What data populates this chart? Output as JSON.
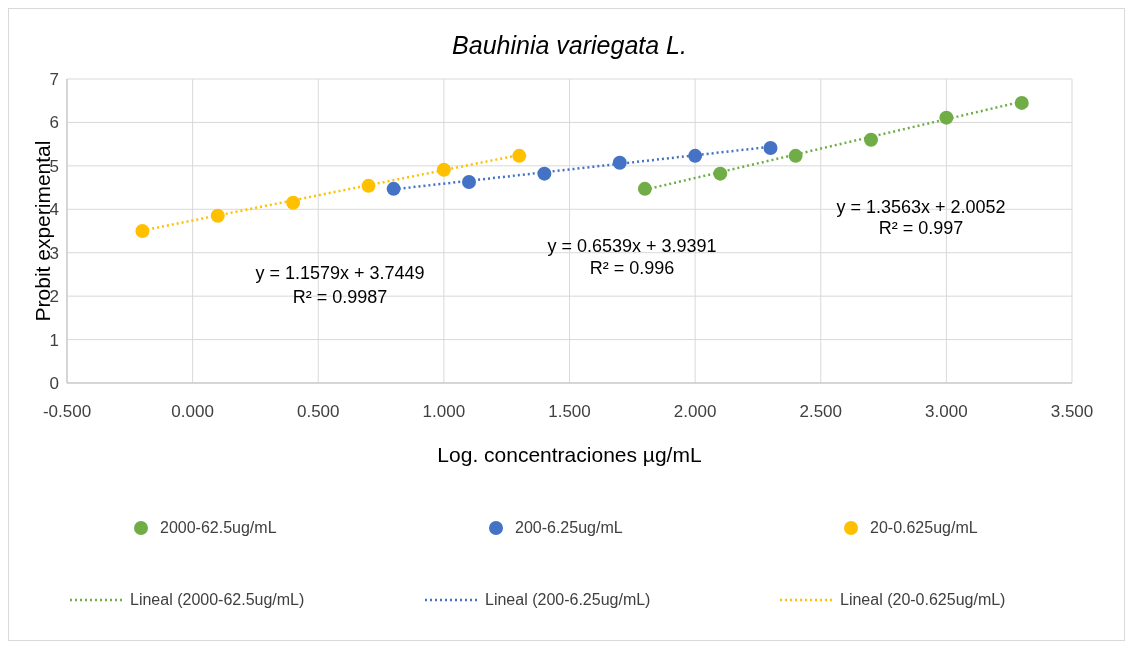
{
  "chart_data": {
    "type": "scatter",
    "title": "Bauhinia variegata L.",
    "xlabel": "Log. concentraciones µg/mL",
    "ylabel": "Probit experimental",
    "xlim": [
      -0.5,
      3.5
    ],
    "ylim": [
      0,
      7
    ],
    "xticks": [
      {
        "value": -0.5,
        "label": "-0.500"
      },
      {
        "value": 0,
        "label": "0.000"
      },
      {
        "value": 0.5,
        "label": "0.500"
      },
      {
        "value": 1,
        "label": "1.000"
      },
      {
        "value": 1.5,
        "label": "1.500"
      },
      {
        "value": 2,
        "label": "2.000"
      },
      {
        "value": 2.5,
        "label": "2.500"
      },
      {
        "value": 3,
        "label": "3.000"
      },
      {
        "value": 3.5,
        "label": "3.500"
      }
    ],
    "yticks": [
      0,
      1,
      2,
      3,
      4,
      5,
      6,
      7
    ],
    "grid": true,
    "legend": "bottom",
    "marker": "circle",
    "series": [
      {
        "name": "2000-62.5ug/mL",
        "color": "#70ad47",
        "x": [
          1.8,
          2.1,
          2.4,
          2.7,
          3.0,
          3.3
        ],
        "values": [
          4.47,
          4.82,
          5.23,
          5.6,
          6.11,
          6.45
        ]
      },
      {
        "name": "200-6.25ug/mL",
        "color": "#4472c4",
        "x": [
          0.8,
          1.1,
          1.4,
          1.7,
          2.0,
          2.3
        ],
        "values": [
          4.47,
          4.63,
          4.82,
          5.07,
          5.23,
          5.41
        ]
      },
      {
        "name": "20-0.625ug/mL",
        "color": "#ffc000",
        "x": [
          -0.2,
          0.1,
          0.4,
          0.7,
          1.0,
          1.3
        ],
        "values": [
          3.5,
          3.85,
          4.15,
          4.54,
          4.91,
          5.23
        ]
      },
      {
        "name": "Lineal (2000-62.5ug/mL)",
        "type": "line",
        "line_style": "dotted",
        "marker": "none",
        "color": "#70ad47",
        "x": [
          1.8,
          3.3
        ],
        "values": [
          4.45,
          6.48
        ]
      },
      {
        "name": "Lineal (200-6.25ug/mL)",
        "type": "line",
        "line_style": "dotted",
        "marker": "none",
        "color": "#4472c4",
        "x": [
          0.8,
          2.3
        ],
        "values": [
          4.46,
          5.44
        ]
      },
      {
        "name": "Lineal (20-0.625ug/mL)",
        "type": "line",
        "line_style": "dotted",
        "marker": "none",
        "color": "#ffc000",
        "x": [
          -0.2,
          1.3
        ],
        "values": [
          3.51,
          5.25
        ]
      }
    ],
    "annotations": [
      "y = 1.1579x + 3.7449",
      "R² = 0.9987",
      "y = 0.6539x + 3.9391",
      "R² = 0.996",
      "y = 1.3563x + 2.0052",
      "R² = 0.997"
    ]
  }
}
